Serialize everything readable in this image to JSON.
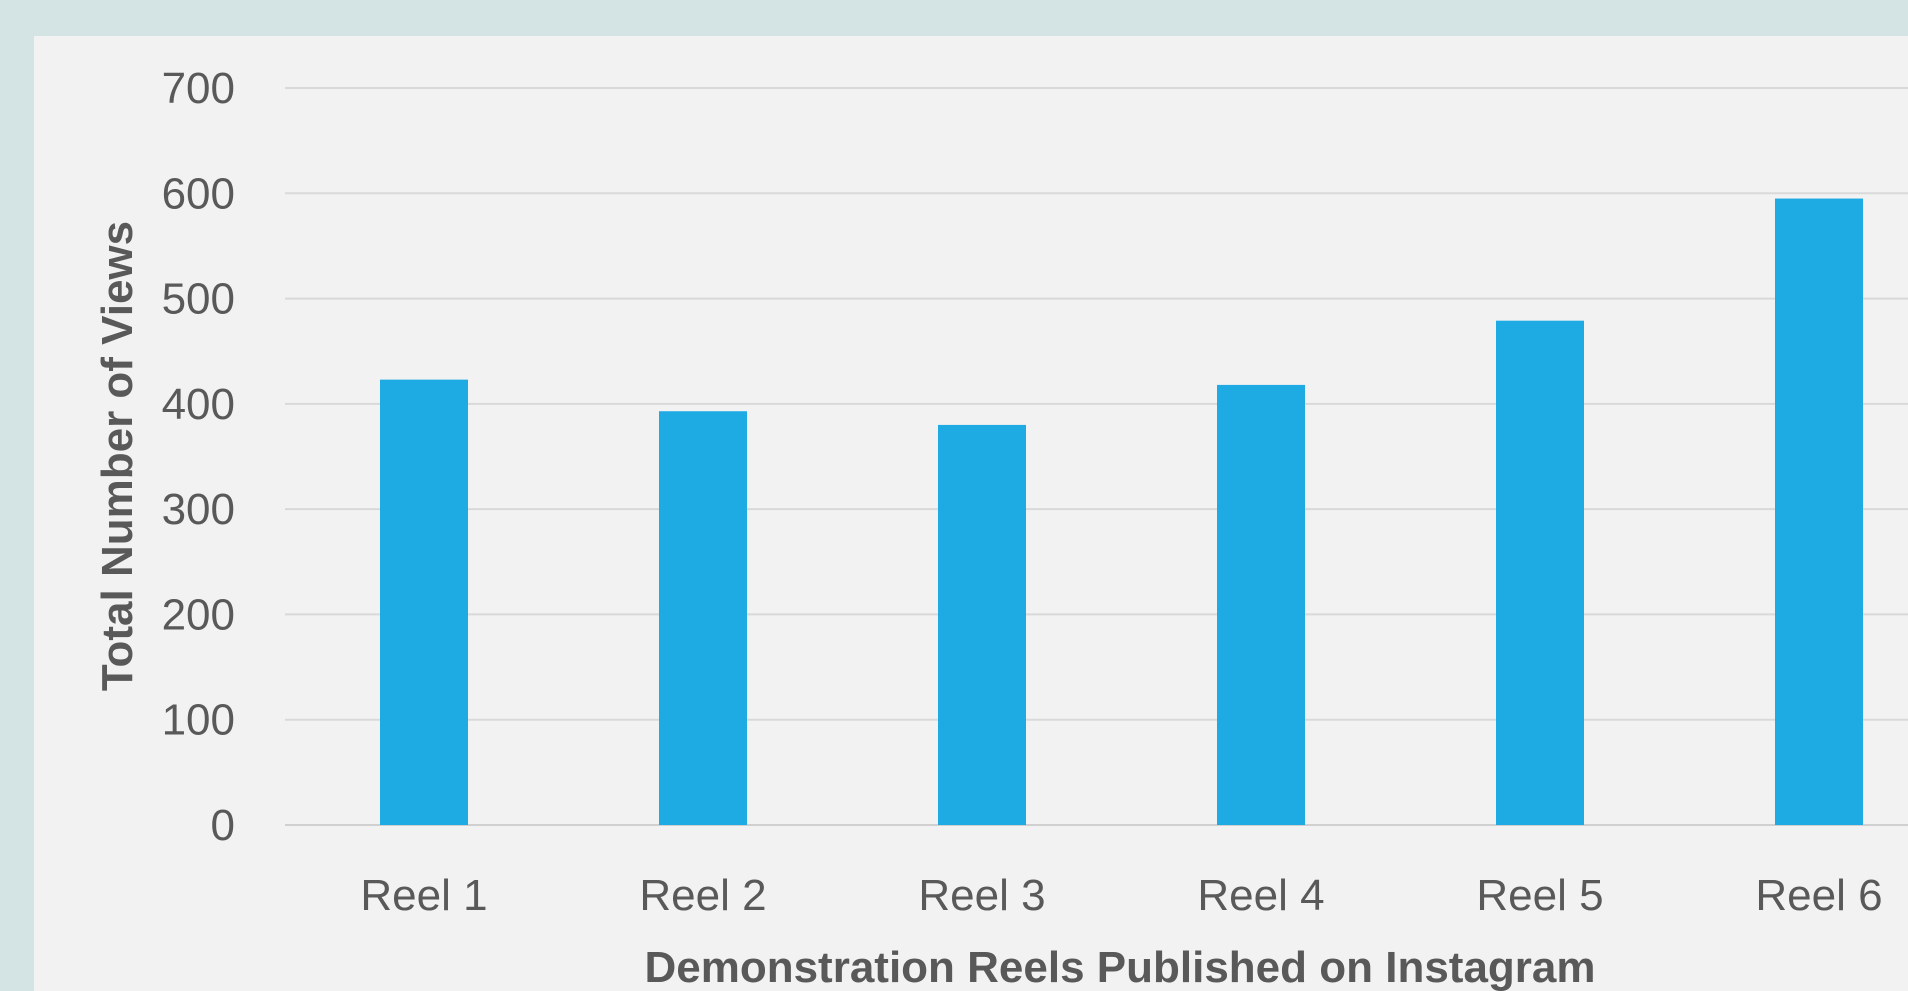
{
  "chart_data": {
    "type": "bar",
    "categories": [
      "Reel 1",
      "Reel 2",
      "Reel 3",
      "Reel 4",
      "Reel 5",
      "Reel 6"
    ],
    "values": [
      423,
      393,
      380,
      418,
      479,
      595
    ],
    "title": "",
    "xlabel": "Demonstration Reels Published on Instagram",
    "ylabel": "Total Number of Views",
    "ylim": [
      0,
      700
    ],
    "yticks": [
      0,
      100,
      200,
      300,
      400,
      500,
      600,
      700
    ],
    "grid": true,
    "legend": "none",
    "bar_color": "#1eabe3",
    "background_color": "#f2f2f2",
    "frame_color": "#d4e4e4"
  }
}
